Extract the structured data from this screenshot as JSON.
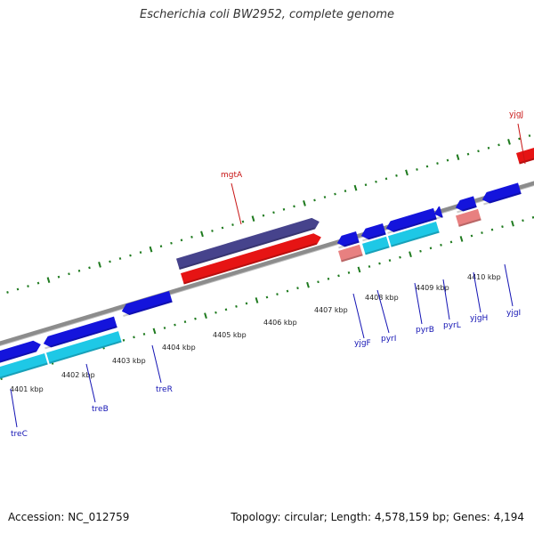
{
  "title": "Escherichia coli BW2952, complete genome",
  "footer": {
    "accession": "Accession: NC_012759",
    "stats": "Topology: circular; Length: 4,578,159 bp; Genes: 4,194"
  },
  "colors": {
    "backbone": "#8c8c8c",
    "tick": "#1e7a1e",
    "cds_blue": "#1414dc",
    "cds_cyan": "#1ec8e6",
    "cds_purple": "#46438c",
    "cds_red": "#e61414",
    "cds_pink": "#e88080",
    "label_blue": "#1414b4",
    "label_red": "#c81414"
  },
  "scale_labels": [
    "4401 kbp",
    "4402 kbp",
    "4403 kbp",
    "4404 kbp",
    "4405 kbp",
    "4406 kbp",
    "4407 kbp",
    "4408 kbp",
    "4409 kbp",
    "4410 kbp"
  ],
  "genes": [
    {
      "name": "treC",
      "color": "label_blue"
    },
    {
      "name": "treB",
      "color": "label_blue"
    },
    {
      "name": "treR",
      "color": "label_blue"
    },
    {
      "name": "mgtA",
      "color": "label_red"
    },
    {
      "name": "yjgF",
      "color": "label_blue"
    },
    {
      "name": "pyrI",
      "color": "label_blue"
    },
    {
      "name": "pyrB",
      "color": "label_blue"
    },
    {
      "name": "pyrL",
      "color": "label_blue"
    },
    {
      "name": "yjgH",
      "color": "label_blue"
    },
    {
      "name": "yjgI",
      "color": "label_blue"
    },
    {
      "name": "yjgJ",
      "color": "label_red"
    }
  ]
}
